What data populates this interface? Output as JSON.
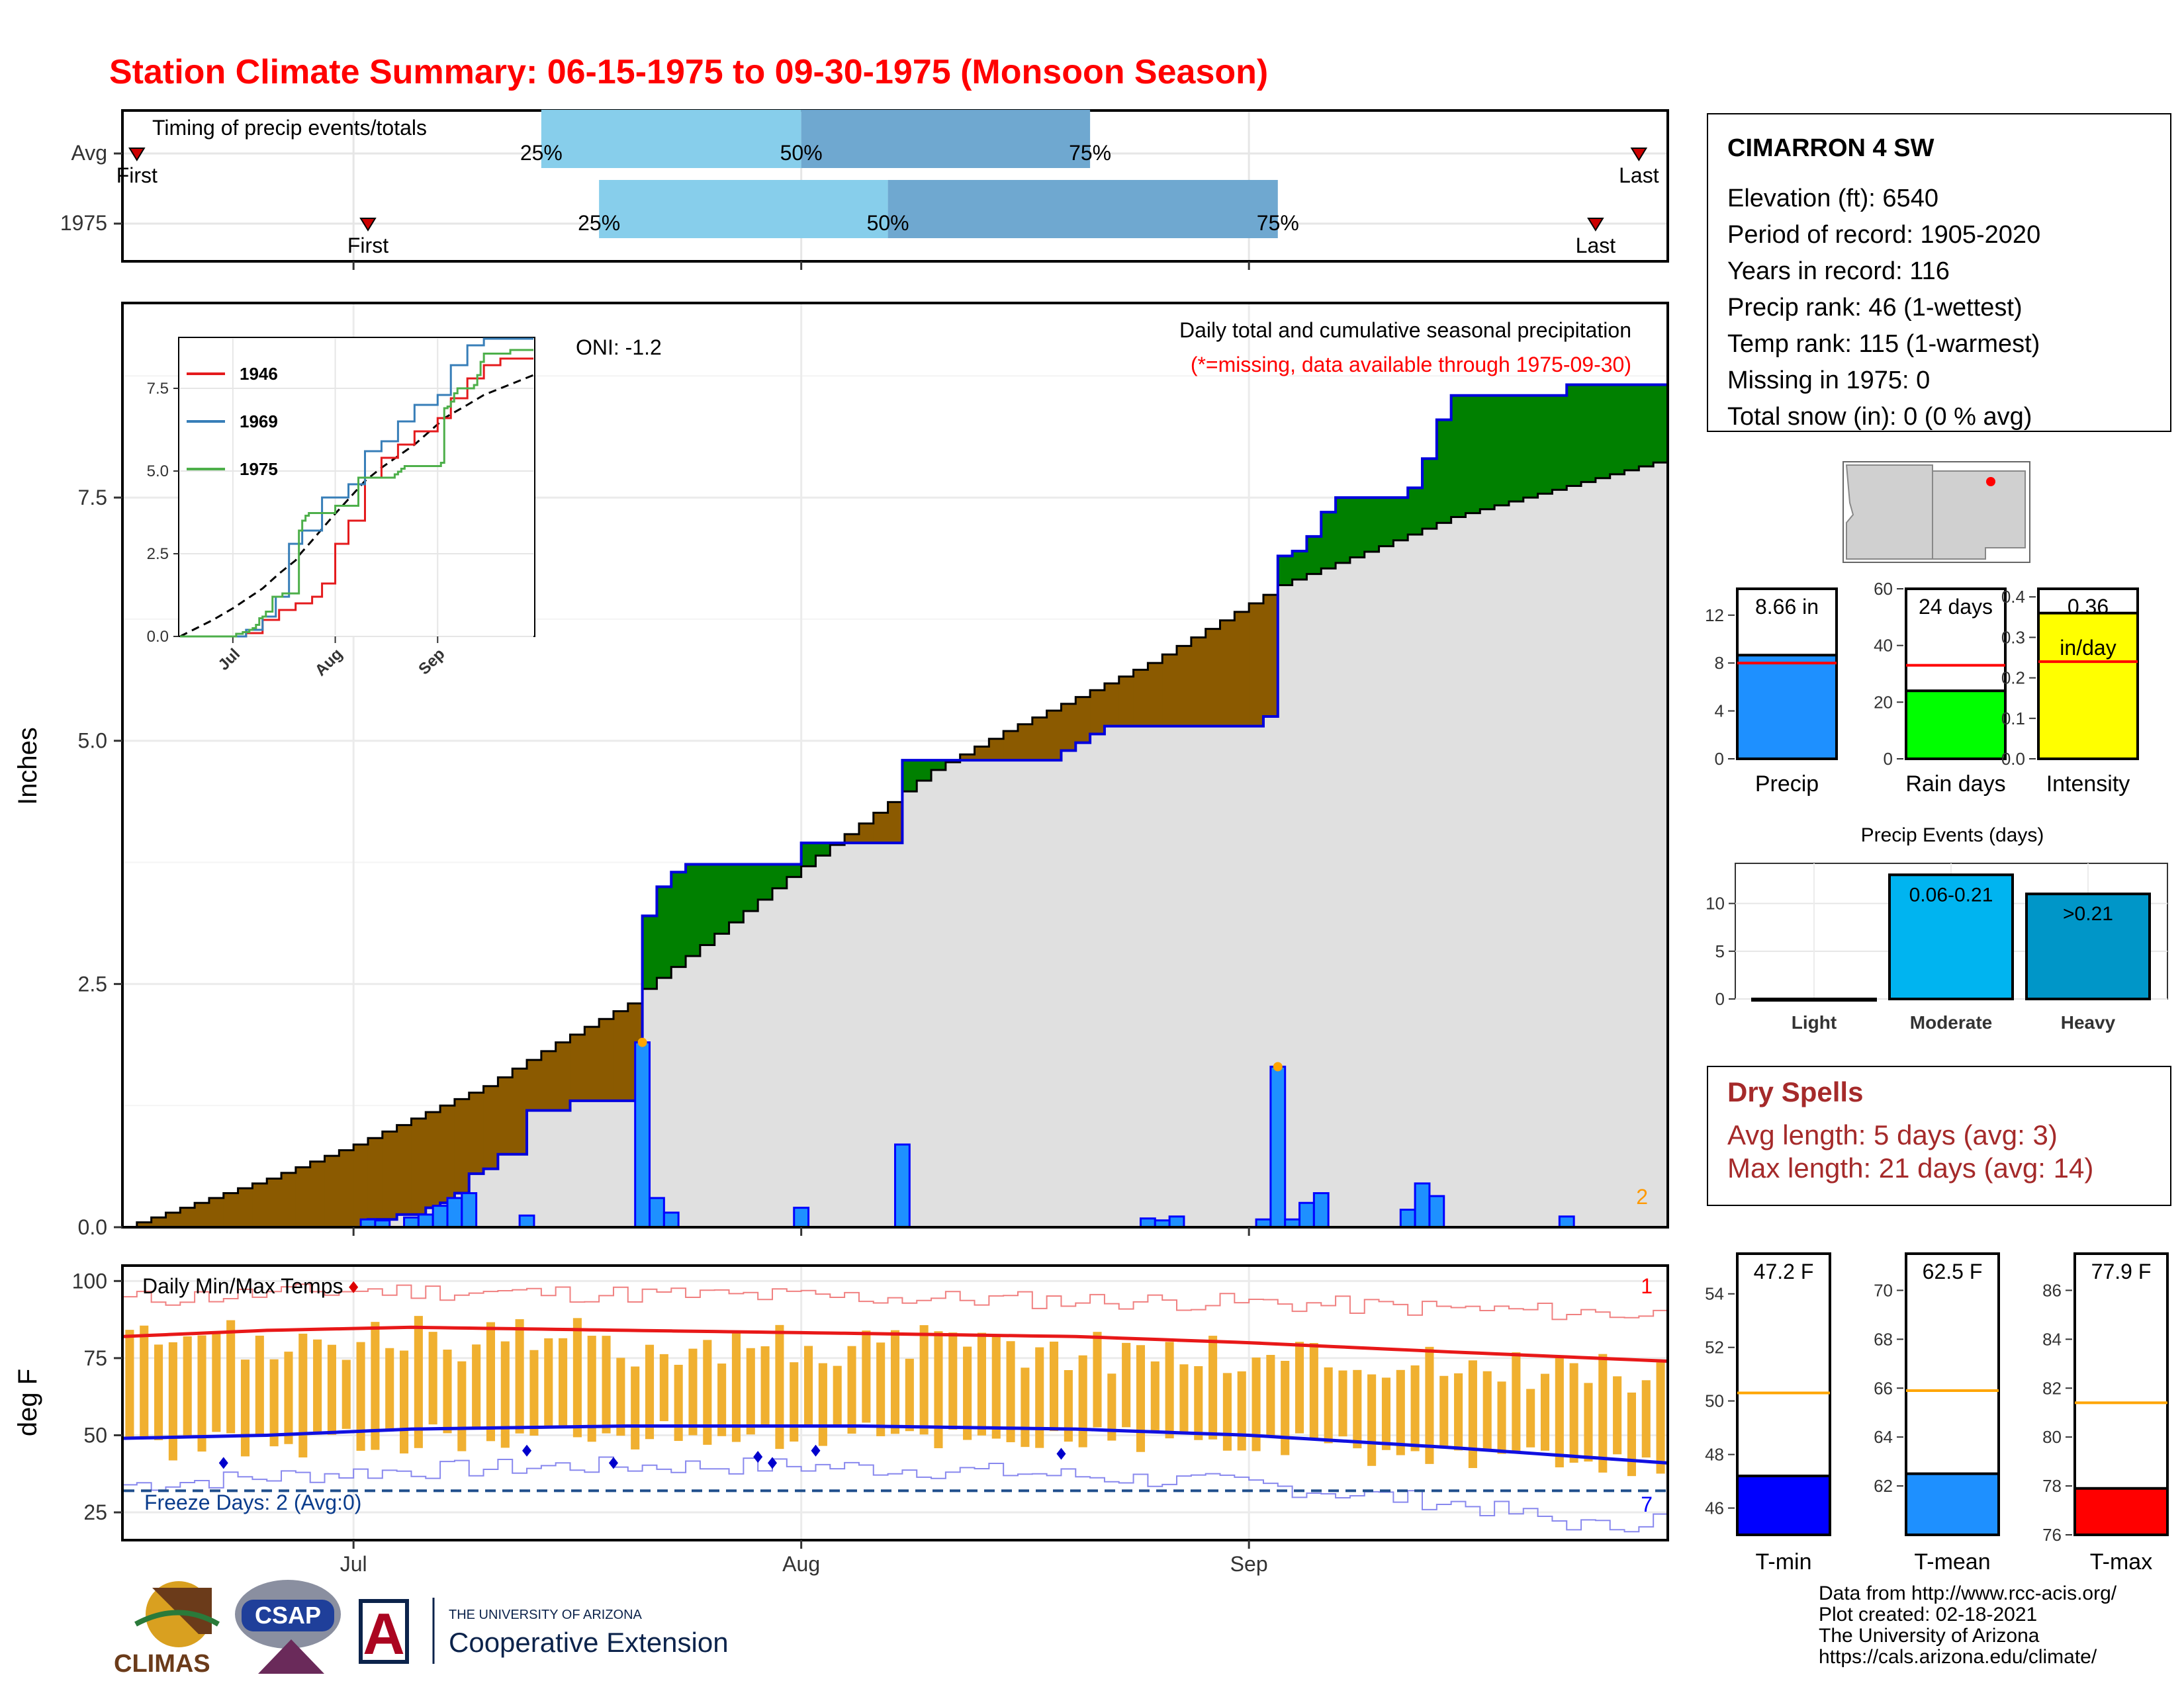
{
  "title": "Station Climate Summary: 06-15-1975 to 09-30-1975 (Monsoon Season)",
  "colors": {
    "title": "#ff0000",
    "above_fill": "#008000",
    "below_fill": "#8b5a00",
    "avg_fill": "#e0e0e0",
    "bars": "#1e90ff",
    "bar_edge": "#0000ff",
    "light_blue": "#87ceeb",
    "mid_blue": "#6fa8d0",
    "dry_text": "#a52a2a",
    "temp_bars": "#f0b030",
    "tmax_line": "#e81818",
    "tmin_line": "#1010e0"
  },
  "timing_panel": {
    "label": "Timing of precip events/totals",
    "rows": [
      {
        "name": "Avg",
        "first_label": "First",
        "last_label": "Last",
        "first": "06-16",
        "p25": "07-14",
        "p50": "08-01",
        "p75": "08-21",
        "last": "09-28"
      },
      {
        "name": "1975",
        "first_label": "First",
        "last_label": "Last",
        "first": "07-02",
        "p25": "07-18",
        "p50": "08-07",
        "p75": "09-03",
        "last": "09-25"
      }
    ],
    "pct_labels": [
      "25%",
      "50%",
      "75%"
    ]
  },
  "precip_panel": {
    "y_title": "Inches",
    "y_ticks": [
      "0.0",
      "2.5",
      "5.0",
      "7.5"
    ],
    "oni": "ONI: -1.2",
    "subtitle": "Daily total and cumulative seasonal precipitation",
    "note": "(*=missing, data available through 1975-09-30)",
    "corner_count": "2",
    "x_ticks": [
      "Jul",
      "Aug",
      "Sep"
    ]
  },
  "inset": {
    "y_ticks": [
      "0.0",
      "2.5",
      "5.0",
      "7.5"
    ],
    "x_ticks": [
      "Jul",
      "Aug",
      "Sep"
    ],
    "legend": [
      {
        "name": "1946",
        "color": "#e41a1c"
      },
      {
        "name": "1969",
        "color": "#377eb8"
      },
      {
        "name": "1975",
        "color": "#4daf4a"
      }
    ]
  },
  "temp_panel": {
    "y_title": "deg F",
    "y_ticks": [
      "25",
      "50",
      "75",
      "100"
    ],
    "label": "Daily Min/Max Temps",
    "freeze": "Freeze Days: 2 (Avg:0)",
    "max_count": "1",
    "min_count": "7",
    "x_ticks": [
      "Jul",
      "Aug",
      "Sep"
    ]
  },
  "station": {
    "name": "CIMARRON 4 SW",
    "lines": [
      "Elevation (ft): 6540",
      "Period of record: 1905-2020",
      "Years in record: 116",
      "Precip rank: 46 (1-wettest)",
      "Temp rank: 115 (1-warmest)",
      "Missing in 1975: 0",
      "Total snow (in): 0 (0 % avg)"
    ]
  },
  "summary_bars": [
    {
      "name": "Precip",
      "value_label": "8.66 in",
      "value": 8.66,
      "avg": 8.0,
      "max": 14.2,
      "ticks": [
        "0",
        "4",
        "8",
        "12"
      ],
      "color": "#1e90ff"
    },
    {
      "name": "Rain days",
      "value_label": "24 days",
      "value": 24,
      "avg": 33,
      "max": 60,
      "ticks": [
        "0",
        "20",
        "40",
        "60"
      ],
      "color": "#00ff00"
    },
    {
      "name": "Intensity",
      "value_label": "0.36",
      "sub_label": "in/day",
      "value": 0.36,
      "avg": 0.24,
      "max": 0.42,
      "ticks": [
        "0.0",
        "0.1",
        "0.2",
        "0.3",
        "0.4"
      ],
      "color": "#ffff00"
    }
  ],
  "events": {
    "title": "Precip Events (days)",
    "y_ticks": [
      "0",
      "5",
      "10"
    ],
    "bars": [
      {
        "name": "Light",
        "value": 0,
        "label": "",
        "color": "#00b4f0"
      },
      {
        "name": "Moderate",
        "value": 13,
        "label": "0.06-0.21",
        "color": "#00b4f0"
      },
      {
        "name": "Heavy",
        "value": 11,
        "label": ">0.21",
        "color": "#0096c8"
      }
    ]
  },
  "dry_spells": {
    "title": "Dry Spells",
    "avg": "Avg length: 5 days (avg: 3)",
    "max": "Max length: 21 days (avg: 14)"
  },
  "temp_bars": [
    {
      "name": "T-min",
      "value_label": "47.2 F",
      "value": 47.2,
      "avg": 50.3,
      "ymin": 45,
      "ymax": 55.5,
      "ticks": [
        "46",
        "48",
        "50",
        "52",
        "54"
      ],
      "color": "#0000ff"
    },
    {
      "name": "T-mean",
      "value_label": "62.5 F",
      "value": 62.5,
      "avg": 65.9,
      "ymin": 60,
      "ymax": 71.5,
      "ticks": [
        "62",
        "64",
        "66",
        "68",
        "70"
      ],
      "color": "#1e90ff"
    },
    {
      "name": "T-max",
      "value_label": "77.9 F",
      "value": 77.9,
      "avg": 81.4,
      "ymin": 76,
      "ymax": 87.5,
      "ticks": [
        "76",
        "78",
        "80",
        "82",
        "84",
        "86"
      ],
      "color": "#ff0000"
    }
  ],
  "footer": [
    "Data from http://www.rcc-acis.org/",
    "Plot created: 02-18-2021",
    "The University of Arizona",
    "https://cals.arizona.edu/climate/"
  ],
  "logos": {
    "climas": "CLIMAS",
    "csap": "CSAP",
    "ua_small": "THE UNIVERSITY OF ARIZONA",
    "ua_big": "Cooperative Extension",
    "ua_letter": "A"
  },
  "chart_data": [
    {
      "type": "area",
      "title": "Daily total and cumulative seasonal precipitation",
      "ylabel": "Inches",
      "ylim": [
        0,
        9.5
      ],
      "x_range": [
        "1975-06-15",
        "1975-09-30"
      ],
      "series": [
        {
          "name": "",
          "kind": "cumulative_observed",
          "points": [
            [
              "06-15",
              0
            ],
            [
              "07-02",
              0.08
            ],
            [
              "07-04",
              0.13
            ],
            [
              "07-06",
              0.2
            ],
            [
              "07-07",
              0.25
            ],
            [
              "07-08",
              0.35
            ],
            [
              "07-09",
              0.55
            ],
            [
              "07-10",
              0.6
            ],
            [
              "07-11",
              0.75
            ],
            [
              "07-13",
              1.2
            ],
            [
              "07-15",
              1.2
            ],
            [
              "07-16",
              1.3
            ],
            [
              "07-20",
              1.3
            ],
            [
              "07-21",
              3.2
            ],
            [
              "07-22",
              3.5
            ],
            [
              "07-23",
              3.65
            ],
            [
              "07-24",
              3.73
            ],
            [
              "07-31",
              3.73
            ],
            [
              "08-01",
              3.95
            ],
            [
              "08-07",
              3.95
            ],
            [
              "08-08",
              4.8
            ],
            [
              "08-18",
              4.8
            ],
            [
              "08-19",
              4.9
            ],
            [
              "08-20",
              4.98
            ],
            [
              "08-21",
              5.07
            ],
            [
              "08-22",
              5.15
            ],
            [
              "08-25",
              5.15
            ],
            [
              "09-01",
              5.15
            ],
            [
              "09-02",
              5.25
            ],
            [
              "09-03",
              6.9
            ],
            [
              "09-04",
              6.95
            ],
            [
              "09-05",
              7.1
            ],
            [
              "09-06",
              7.35
            ],
            [
              "09-07",
              7.5
            ],
            [
              "09-08",
              7.5
            ],
            [
              "09-11",
              7.5
            ],
            [
              "09-12",
              7.6
            ],
            [
              "09-13",
              7.9
            ],
            [
              "09-14",
              8.3
            ],
            [
              "09-15",
              8.55
            ],
            [
              "09-22",
              8.55
            ],
            [
              "09-23",
              8.66
            ],
            [
              "09-30",
              8.66
            ]
          ]
        },
        {
          "name": "",
          "kind": "cumulative_average",
          "points": [
            [
              "06-15",
              0
            ],
            [
              "06-20",
              0.25
            ],
            [
              "06-25",
              0.5
            ],
            [
              "07-01",
              0.85
            ],
            [
              "07-10",
              1.45
            ],
            [
              "07-15",
              1.9
            ],
            [
              "07-20",
              2.3
            ],
            [
              "07-21",
              2.45
            ],
            [
              "07-25",
              2.9
            ],
            [
              "07-31",
              3.6
            ],
            [
              "08-05",
              4.15
            ],
            [
              "08-10",
              4.7
            ],
            [
              "08-15",
              5.1
            ],
            [
              "08-20",
              5.45
            ],
            [
              "08-25",
              5.8
            ],
            [
              "09-02",
              6.5
            ],
            [
              "09-03",
              6.6
            ],
            [
              "09-10",
              7.0
            ],
            [
              "09-15",
              7.3
            ],
            [
              "09-20",
              7.5
            ],
            [
              "09-25",
              7.7
            ],
            [
              "09-30",
              7.9
            ]
          ]
        }
      ],
      "daily_precip": [
        [
          "07-02",
          0.08
        ],
        [
          "07-03",
          0.07
        ],
        [
          "07-05",
          0.1
        ],
        [
          "07-06",
          0.13
        ],
        [
          "07-07",
          0.22
        ],
        [
          "07-08",
          0.3
        ],
        [
          "07-09",
          0.35
        ],
        [
          "07-13",
          0.12
        ],
        [
          "07-21",
          1.9
        ],
        [
          "07-22",
          0.3
        ],
        [
          "07-23",
          0.15
        ],
        [
          "08-01",
          0.2
        ],
        [
          "08-08",
          0.85
        ],
        [
          "08-25",
          0.09
        ],
        [
          "08-26",
          0.07
        ],
        [
          "08-27",
          0.11
        ],
        [
          "09-02",
          0.08
        ],
        [
          "09-03",
          1.65
        ],
        [
          "09-04",
          0.08
        ],
        [
          "09-05",
          0.25
        ],
        [
          "09-06",
          0.35
        ],
        [
          "09-12",
          0.18
        ],
        [
          "09-13",
          0.45
        ],
        [
          "09-14",
          0.32
        ],
        [
          "09-23",
          0.11
        ]
      ]
    },
    {
      "type": "line",
      "title": "Daily Min/Max Temps",
      "ylabel": "deg F",
      "ylim": [
        16,
        105
      ],
      "series": [
        {
          "name": "",
          "kind": "tmax_average",
          "points": [
            [
              "06-15",
              82
            ],
            [
              "06-25",
              84
            ],
            [
              "07-05",
              85
            ],
            [
              "07-20",
              84
            ],
            [
              "08-05",
              83
            ],
            [
              "08-20",
              82
            ],
            [
              "09-01",
              80
            ],
            [
              "09-15",
              77
            ],
            [
              "09-30",
              74
            ]
          ]
        },
        {
          "name": "",
          "kind": "tmin_average",
          "points": [
            [
              "06-15",
              49
            ],
            [
              "06-25",
              50
            ],
            [
              "07-05",
              52
            ],
            [
              "07-20",
              53
            ],
            [
              "08-05",
              53
            ],
            [
              "08-20",
              52
            ],
            [
              "09-01",
              50
            ],
            [
              "09-15",
              46
            ],
            [
              "09-30",
              41
            ]
          ]
        },
        {
          "name": "",
          "kind": "record_high",
          "points": [
            [
              "06-15",
              94
            ],
            [
              "07-01",
              97
            ],
            [
              "07-15",
              96
            ],
            [
              "08-01",
              95
            ],
            [
              "08-15",
              94
            ],
            [
              "09-01",
              93
            ],
            [
              "09-15",
              91
            ],
            [
              "09-30",
              89
            ]
          ]
        },
        {
          "name": "",
          "kind": "record_low",
          "points": [
            [
              "06-15",
              34
            ],
            [
              "07-01",
              38
            ],
            [
              "07-15",
              40
            ],
            [
              "08-01",
              40
            ],
            [
              "08-15",
              38
            ],
            [
              "09-01",
              34
            ],
            [
              "09-15",
              28
            ],
            [
              "09-25",
              20
            ],
            [
              "09-30",
              24
            ]
          ]
        }
      ],
      "freeze_threshold": 32
    },
    {
      "type": "bar",
      "title": "Precip Events (days)",
      "categories": [
        "Light",
        "Moderate",
        "Heavy"
      ],
      "values": [
        0,
        13,
        11
      ]
    }
  ]
}
